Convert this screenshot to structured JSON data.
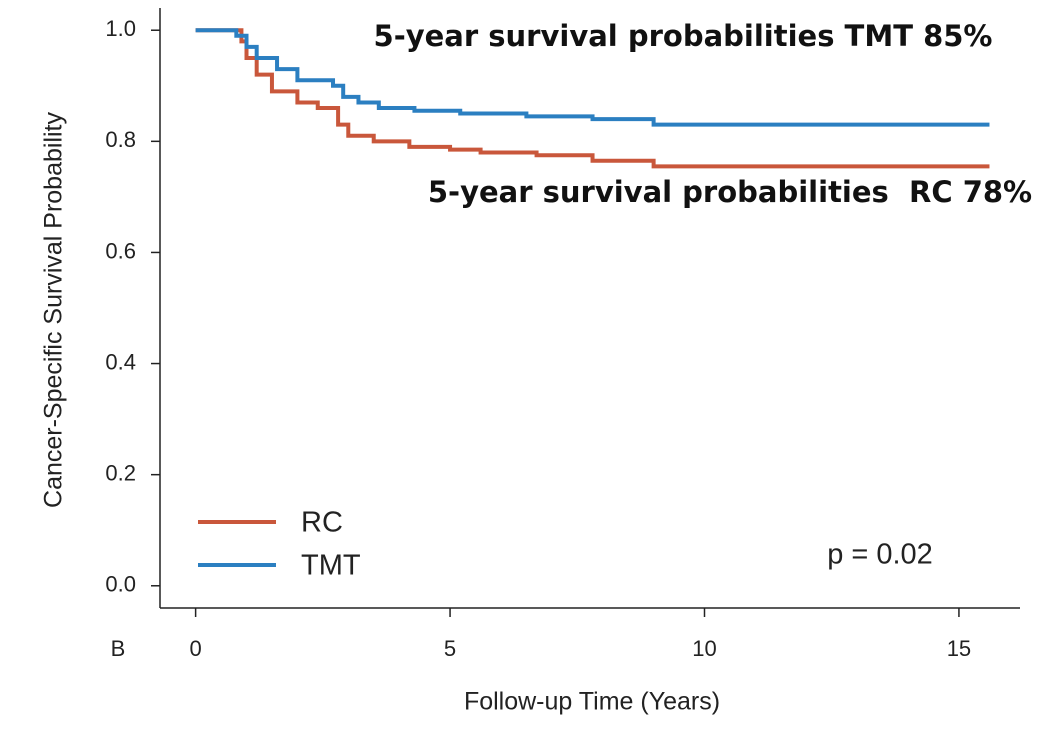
{
  "chart_data": {
    "type": "step",
    "x_label": "Follow-up Time (Years)",
    "y_label": "Cancer-Specific Survival Probability",
    "annotations": [
      "5-year survival probabilities TMT 85%",
      "5-year survival probabilities  RC 78%",
      "p = 0.02",
      "B"
    ],
    "xlim": [
      -0.7,
      16.2
    ],
    "xticks": [
      0,
      5,
      10,
      15
    ],
    "ylim": [
      -0.04,
      1.04
    ],
    "yticks": [
      {
        "value": 0,
        "label": "0.0"
      },
      0.2,
      0.4,
      0.6,
      0.8,
      {
        "value": 1,
        "label": "1.0"
      }
    ],
    "legend": "lower left",
    "series": [
      {
        "name": "RC",
        "color": "#c9573b",
        "x": [
          0,
          0.9,
          1.0,
          1.2,
          1.5,
          2.0,
          2.4,
          2.8,
          3.0,
          3.5,
          4.2,
          5.0,
          5.6,
          6.7,
          7.8,
          9.0,
          15.6
        ],
        "values": [
          1.0,
          0.98,
          0.95,
          0.92,
          0.89,
          0.87,
          0.86,
          0.83,
          0.81,
          0.8,
          0.79,
          0.785,
          0.78,
          0.775,
          0.765,
          0.755,
          0.755
        ]
      },
      {
        "name": "TMT",
        "color": "#2b7fc1",
        "x": [
          0,
          0.8,
          1.0,
          1.2,
          1.6,
          2.0,
          2.7,
          2.9,
          3.2,
          3.6,
          4.3,
          5.2,
          6.5,
          7.8,
          9.0,
          15.6
        ],
        "values": [
          1.0,
          0.99,
          0.97,
          0.95,
          0.93,
          0.91,
          0.9,
          0.88,
          0.87,
          0.86,
          0.855,
          0.85,
          0.845,
          0.84,
          0.83,
          0.83
        ]
      }
    ]
  }
}
